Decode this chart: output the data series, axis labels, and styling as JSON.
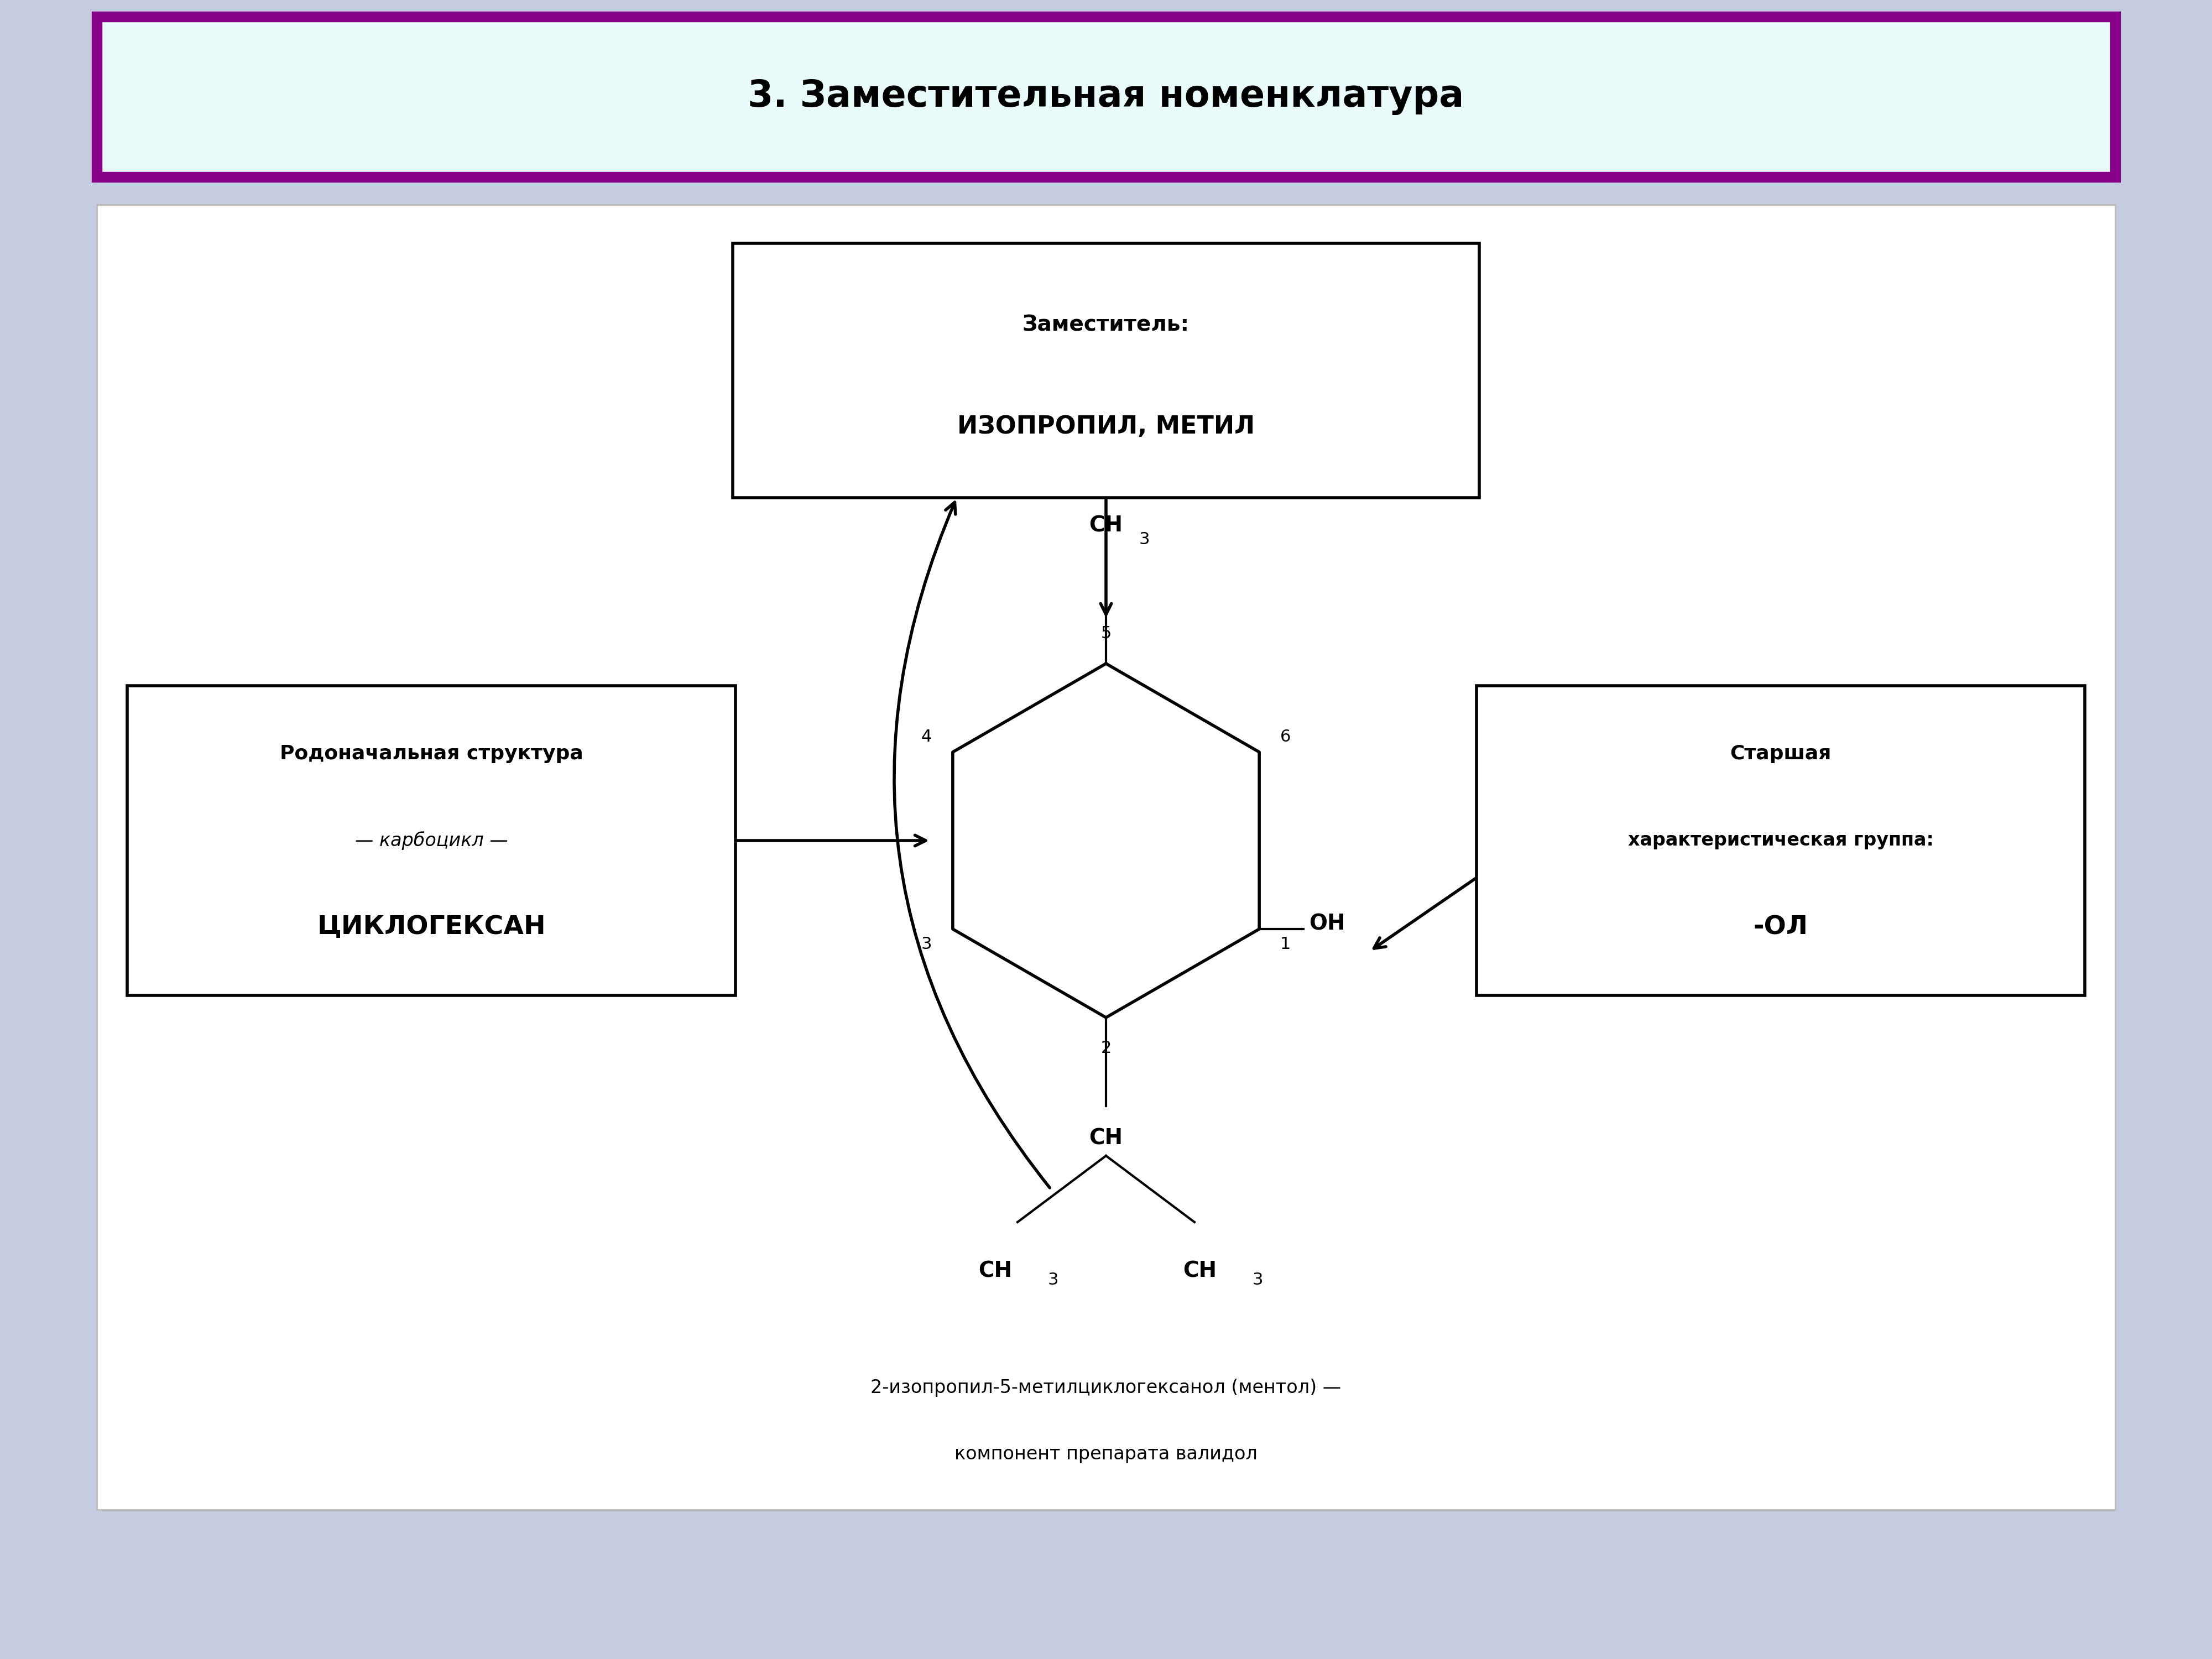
{
  "title": "3. Заместительная номенклатура",
  "bg_outer": "#c5cce0",
  "bg_title_fill": "#e8fafa",
  "title_border": "#880088",
  "content_bg": "#ffffff",
  "title_fontsize": 48,
  "box_top_text1": "Заместитель:",
  "box_top_text2": "ИЗОПРОПИЛ, МЕТИЛ",
  "box_left_text1": "Родоначальная структура",
  "box_left_text2": "— карбоцикл —",
  "box_left_text3": "ЦИКЛОГЕКСАН",
  "box_right_text1": "Старшая",
  "box_right_text2": "характеристическая группа:",
  "box_right_text3": "-ОЛ",
  "caption1": "2-изопропил-5-метилциклогексанол (ментол) —",
  "caption2": "компонент препарата валидол"
}
